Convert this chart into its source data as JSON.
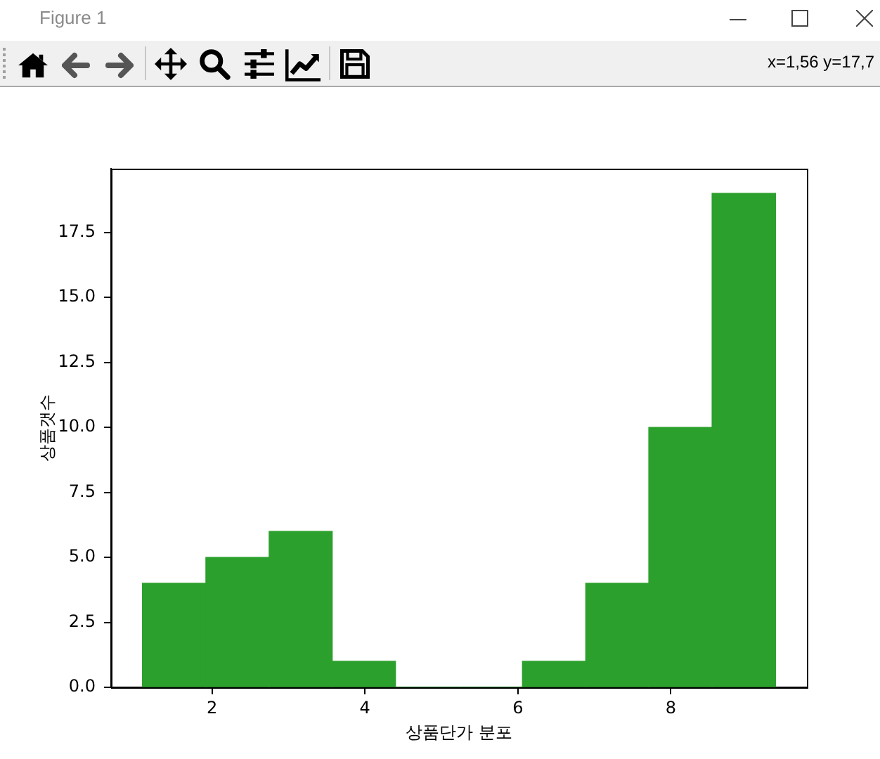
{
  "chart_data": {
    "type": "histogram",
    "xlabel": "상품단가 분포",
    "ylabel": "상품갯수",
    "annotations": [
      "Figure 1",
      "x=1,56 y=17,7"
    ],
    "bins": [
      1.09,
      1.92,
      2.75,
      3.57,
      4.4,
      5.23,
      6.06,
      6.89,
      7.71,
      8.54,
      9.37
    ],
    "values": [
      4,
      5,
      6,
      1,
      0,
      0,
      1,
      4,
      10,
      19
    ],
    "color": "#2ca02c",
    "xlim": [
      0.68,
      9.78
    ],
    "ylim": [
      0,
      19.95
    ],
    "xticks": [
      2,
      4,
      6,
      8
    ],
    "yticks": [
      {
        "value": 0,
        "label": "0.0"
      },
      2.5,
      {
        "value": 5,
        "label": "5.0"
      },
      7.5,
      {
        "value": 10,
        "label": "10.0"
      },
      12.5,
      {
        "value": 15,
        "label": "15.0"
      },
      17.5
    ],
    "grid": false,
    "legend": false
  }
}
